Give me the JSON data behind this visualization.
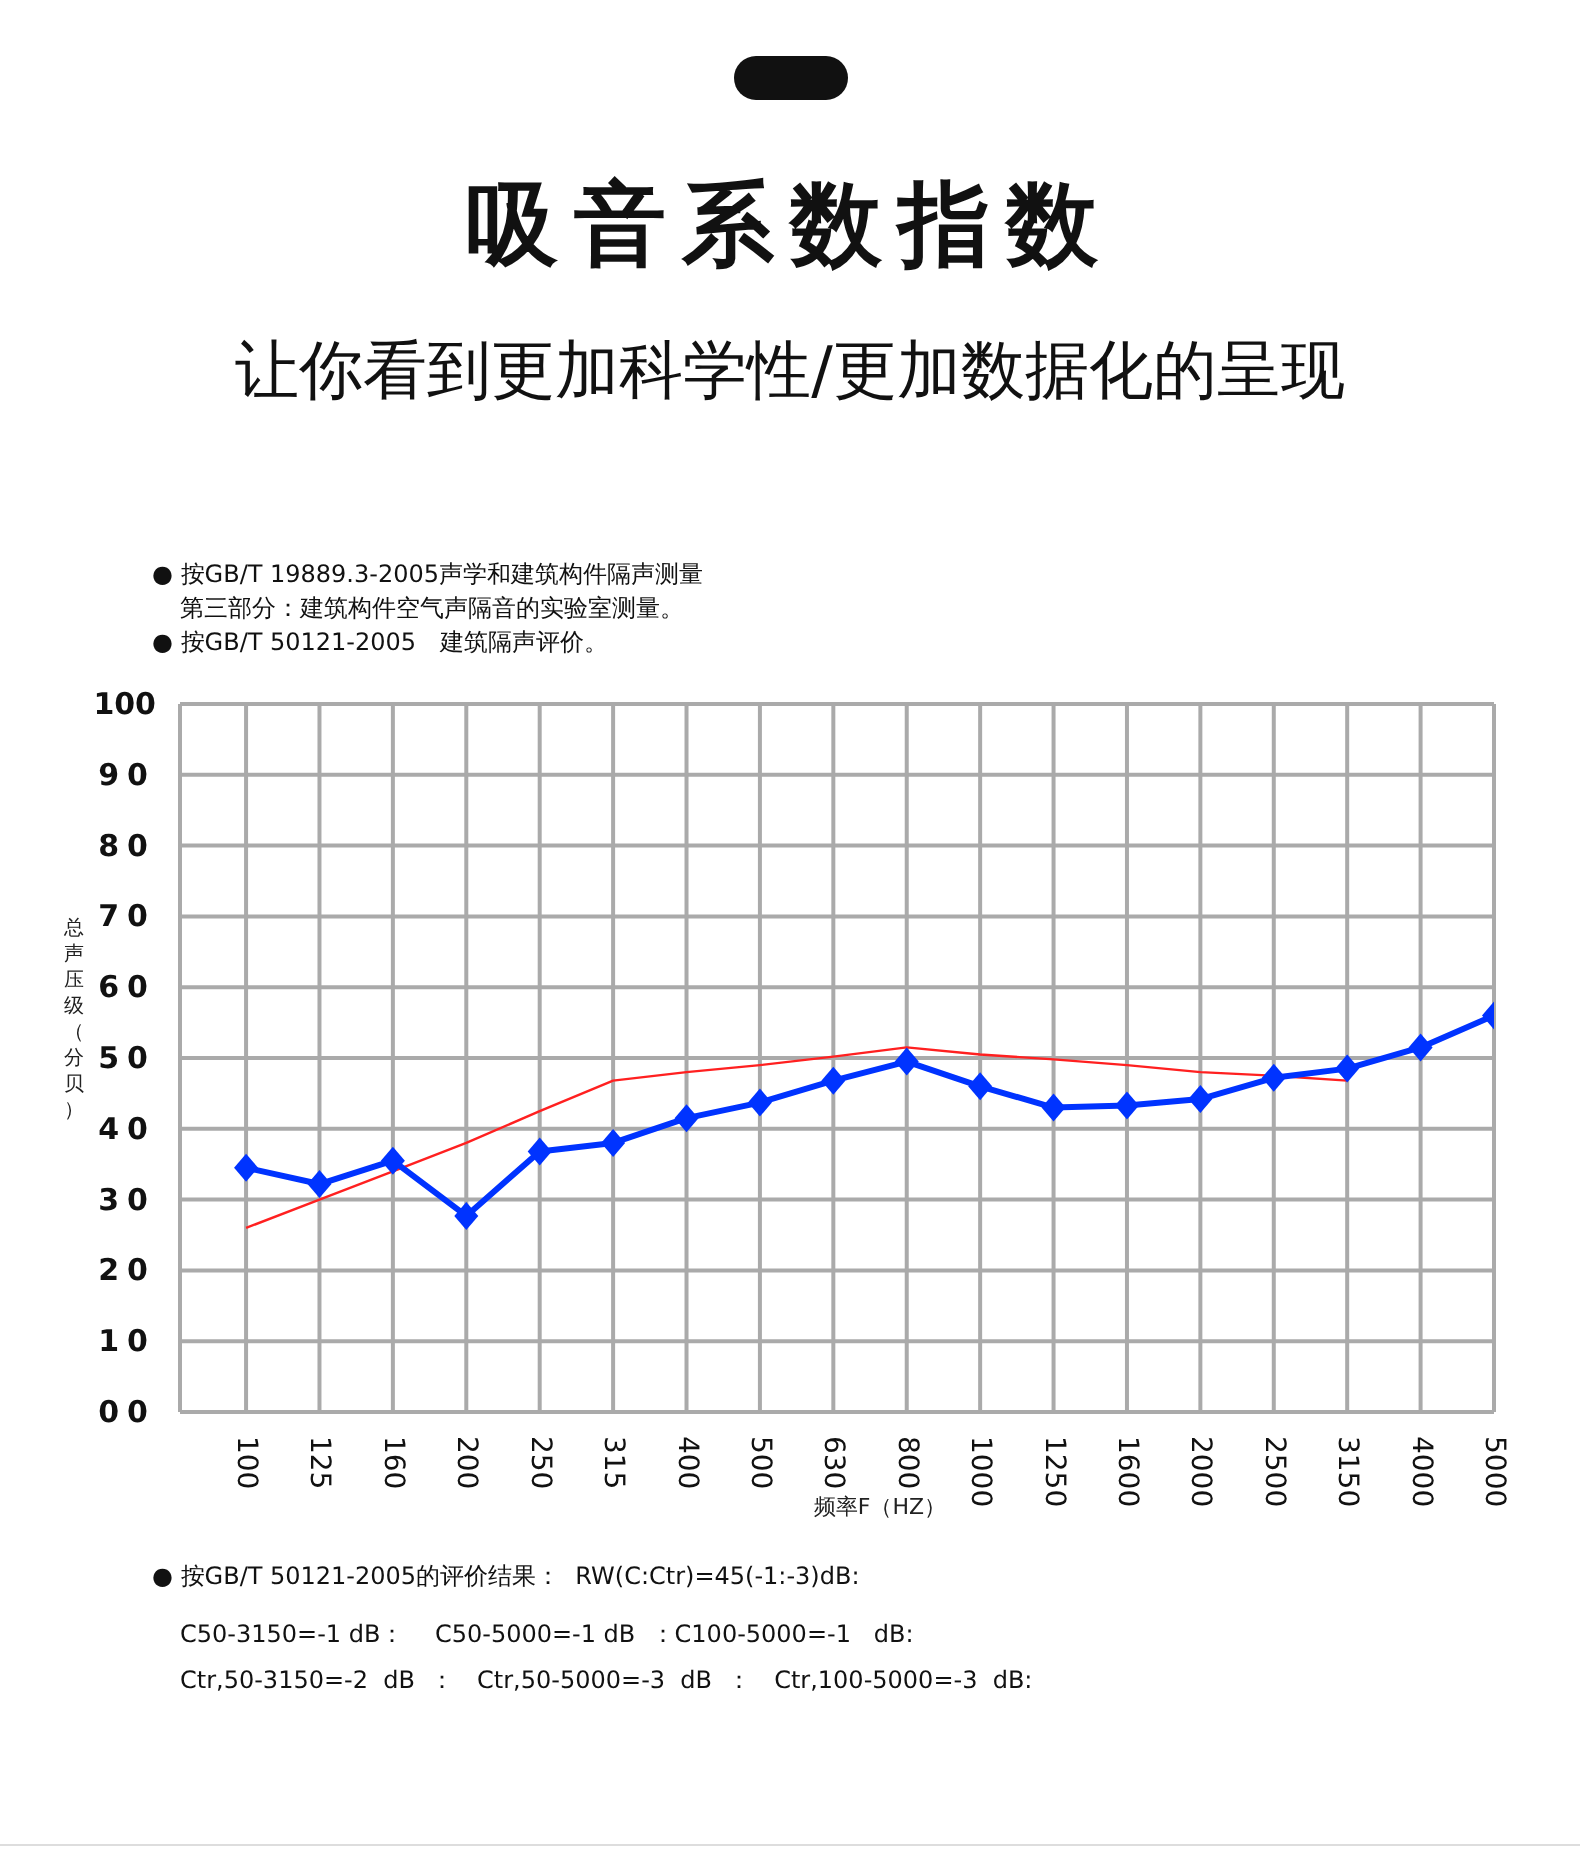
{
  "chart_data": {
    "type": "line",
    "title": "吸音系数指数",
    "subtitle": "让你看到更加科学性/更加数据化的呈现",
    "xlabel": "频率F（HZ）",
    "ylabel": "总声压级（分贝）",
    "categories": [
      "100",
      "125",
      "160",
      "200",
      "250",
      "315",
      "400",
      "500",
      "630",
      "800",
      "1000",
      "1250",
      "1600",
      "2000",
      "2500",
      "3150",
      "4000",
      "5000"
    ],
    "series": [
      {
        "color": "#0033ff",
        "marker": "diamond",
        "values": [
          34.5,
          32.2,
          35.5,
          27.7,
          36.8,
          38,
          41.5,
          43.7,
          46.8,
          49.5,
          46,
          43,
          43.3,
          44.2,
          47.2,
          48.5,
          51.5,
          56
        ]
      },
      {
        "color": "#ff2020",
        "marker": "none",
        "values": [
          26,
          30,
          34,
          38,
          42.5,
          46.8,
          48,
          49,
          50.2,
          51.5,
          50.5,
          49.8,
          49,
          48,
          47.5,
          46.8,
          null,
          null
        ]
      }
    ],
    "ylim": [
      0,
      100
    ],
    "yticks": [
      {
        "value": 0,
        "label": "00"
      },
      10,
      20,
      30,
      40,
      50,
      60,
      70,
      80,
      90,
      100
    ],
    "grid": true,
    "legend": false,
    "annotations": [
      "● 按GB/T 19889.3-2005声学和建筑构件隔声测量",
      "第三部分：建筑构件空气声隔音的实验室测量。",
      "● 按GB/T 50121-2005　建筑隔声评价。",
      "● 按GB/T 50121-2005的评价结果：  RW(C:Ctr)=45(-1:-3)dB:",
      "C50-3150=-1 dB：    C50-5000=-1 dB  ：C100-5000=-1   dB:",
      "Ctr,50-3150=-2  dB  ：   Ctr,50-5000=-3  dB  ：   Ctr,100-5000=-3  dB:"
    ]
  }
}
